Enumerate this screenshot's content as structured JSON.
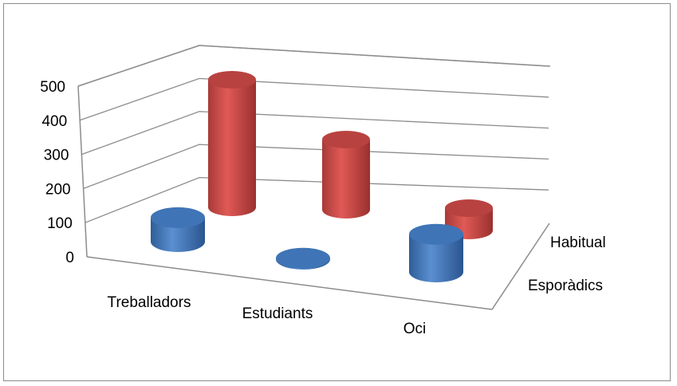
{
  "chart_data": {
    "type": "bar",
    "style": "3d-cylinder",
    "categories": [
      "Treballadors",
      "Estudiants",
      "Oci"
    ],
    "series": [
      {
        "name": "Esporàdics",
        "values": [
          70,
          3,
          110
        ],
        "color": "#4F81BD"
      },
      {
        "name": "Habitual",
        "values": [
          500,
          200,
          100
        ],
        "color": "#C0504D"
      }
    ],
    "yticks": [
      "0",
      "100",
      "200",
      "300",
      "400",
      "500"
    ],
    "ylim": [
      0,
      500
    ],
    "grid": true,
    "title": "",
    "xlabel": "",
    "ylabel": ""
  }
}
